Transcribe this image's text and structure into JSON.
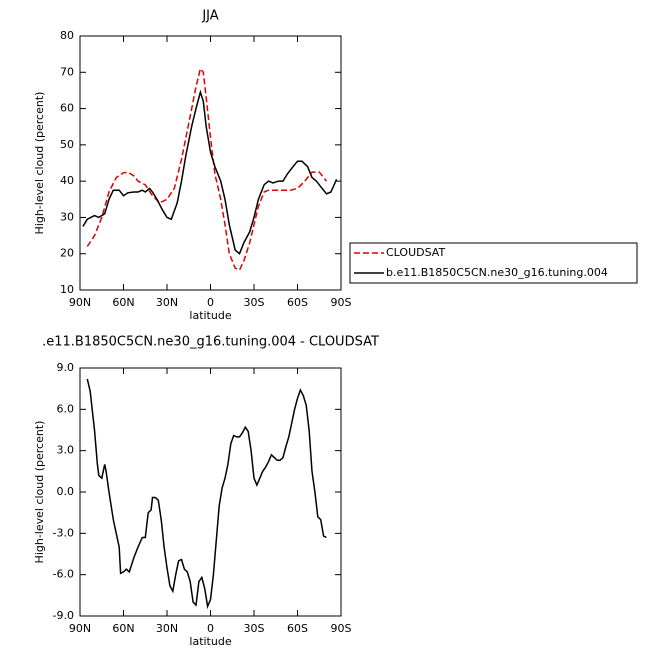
{
  "chart_data": [
    {
      "type": "line",
      "title": "JJA",
      "xlabel": "latitude",
      "ylabel": "High-level cloud (percent)",
      "xlim": [
        90,
        -90
      ],
      "xticks": [
        {
          "value": 90,
          "label": "90N"
        },
        {
          "value": 60,
          "label": "60N"
        },
        {
          "value": 30,
          "label": "30N"
        },
        0,
        {
          "value": -30,
          "label": "30S"
        },
        {
          "value": -60,
          "label": "60S"
        },
        {
          "value": -90,
          "label": "90S"
        }
      ],
      "ylim": [
        10,
        80
      ],
      "yticks": [
        10,
        20,
        30,
        40,
        50,
        60,
        70,
        80
      ],
      "legend": "right",
      "series": [
        {
          "name": "CLOUDSAT",
          "color": "#e00000",
          "dashed": true,
          "x": [
            85,
            80,
            75,
            70,
            65,
            60,
            57,
            53,
            50,
            45,
            40,
            35,
            30,
            25,
            20,
            15,
            10,
            7,
            5,
            3,
            0,
            -3,
            -7,
            -10,
            -13,
            -17,
            -20,
            -23,
            -27,
            -30,
            -33,
            -37,
            -40,
            -45,
            -50,
            -55,
            -60,
            -65,
            -70,
            -75,
            -80
          ],
          "values": [
            22,
            25,
            30,
            37,
            41,
            42.3,
            42.5,
            41.5,
            40,
            39,
            36,
            34,
            35,
            38,
            46,
            56,
            66,
            71,
            70,
            63,
            52,
            42,
            35,
            28,
            20,
            16,
            15.5,
            18,
            23,
            28,
            33,
            37,
            37.5,
            37.5,
            37.5,
            37.5,
            38,
            40,
            42.5,
            42.5,
            40
          ]
        },
        {
          "name": "b.e11.B1850C5CN.ne30_g16.tuning.004",
          "color": "#000000",
          "dashed": false,
          "x": [
            88,
            85,
            80,
            77,
            73,
            70,
            67,
            63,
            60,
            57,
            53,
            50,
            47,
            45,
            42,
            40,
            37,
            33,
            30,
            27,
            23,
            20,
            17,
            13,
            10,
            7,
            5,
            3,
            0,
            -3,
            -7,
            -10,
            -13,
            -17,
            -20,
            -23,
            -27,
            -30,
            -33,
            -37,
            -40,
            -43,
            -47,
            -50,
            -53,
            -57,
            -60,
            -63,
            -67,
            -70,
            -73,
            -77,
            -80,
            -83,
            -87
          ],
          "values": [
            27.5,
            29.5,
            30.5,
            30,
            31,
            35,
            37.5,
            37.5,
            36,
            36.8,
            37,
            37,
            37.5,
            37,
            38,
            37,
            35,
            32,
            30,
            29.5,
            34,
            40,
            47,
            55,
            60,
            64.5,
            62,
            55,
            48,
            44,
            40,
            35,
            28,
            21,
            20,
            23,
            26,
            30,
            35,
            39,
            40,
            39.5,
            40,
            40,
            42,
            44,
            45.5,
            45.5,
            44,
            41,
            40,
            38,
            36.5,
            37,
            40.5
          ]
        }
      ]
    },
    {
      "type": "line",
      "title": ".e11.B1850C5CN.ne30_g16.tuning.004 - CLOUDSAT",
      "xlabel": "latitude",
      "ylabel": "High-level cloud (percent)",
      "xlim": [
        90,
        -90
      ],
      "xticks": [
        {
          "value": 90,
          "label": "90N"
        },
        {
          "value": 60,
          "label": "60N"
        },
        {
          "value": 30,
          "label": "30N"
        },
        0,
        {
          "value": -30,
          "label": "30S"
        },
        {
          "value": -60,
          "label": "60S"
        },
        {
          "value": -90,
          "label": "90S"
        }
      ],
      "ylim": [
        -9,
        9
      ],
      "yticks": [
        {
          "value": -9,
          "label": "-9.0"
        },
        {
          "value": -6,
          "label": "-6.0"
        },
        {
          "value": -3,
          "label": "-3.0"
        },
        {
          "value": 0,
          "label": "0.0"
        },
        {
          "value": 3,
          "label": "3.0"
        },
        {
          "value": 6,
          "label": "6.0"
        },
        {
          "value": 9,
          "label": "9.0"
        }
      ],
      "series": [
        {
          "color": "#000000",
          "dashed": false,
          "x": [
            85,
            83,
            80,
            78,
            77,
            75,
            73,
            72,
            70,
            67,
            63,
            62,
            60,
            58,
            56,
            53,
            50,
            47,
            45,
            43,
            41,
            40,
            38,
            36,
            34,
            32,
            30,
            28,
            26,
            24,
            22,
            20,
            18,
            16,
            14,
            12,
            10,
            8,
            6,
            4,
            2,
            0,
            -2,
            -4,
            -6,
            -8,
            -10,
            -12,
            -14,
            -16,
            -18,
            -20,
            -22,
            -24,
            -26,
            -28,
            -30,
            -32,
            -34,
            -36,
            -38,
            -40,
            -42,
            -44,
            -46,
            -48,
            -50,
            -52,
            -54,
            -56,
            -58,
            -60,
            -62,
            -64,
            -66,
            -68,
            -70,
            -72,
            -74,
            -76,
            -78,
            -80
          ],
          "values": [
            8.2,
            7.3,
            4.5,
            2,
            1.2,
            1.0,
            2.0,
            1.5,
            0,
            -2,
            -4,
            -5.9,
            -5.8,
            -5.6,
            -5.8,
            -4.8,
            -4.0,
            -3.3,
            -3.3,
            -1.5,
            -1.3,
            -0.4,
            -0.4,
            -0.6,
            -2.0,
            -4,
            -5.5,
            -6.8,
            -7.2,
            -6.0,
            -5.0,
            -4.9,
            -5.6,
            -5.8,
            -6.5,
            -8.0,
            -8.2,
            -6.5,
            -6.2,
            -7.0,
            -8.3,
            -7.8,
            -6,
            -3.5,
            -1,
            0.3,
            1,
            2,
            3.5,
            4.1,
            4.0,
            4.0,
            4.3,
            4.7,
            4.4,
            3,
            1,
            0.5,
            1,
            1.5,
            1.8,
            2.2,
            2.7,
            2.5,
            2.3,
            2.3,
            2.5,
            3.3,
            4.0,
            5,
            6.0,
            6.8,
            7.4,
            7.0,
            6.3,
            4.5,
            1.5,
            0,
            -1.8,
            -2.0,
            -3.2,
            -3.3
          ]
        }
      ]
    }
  ]
}
